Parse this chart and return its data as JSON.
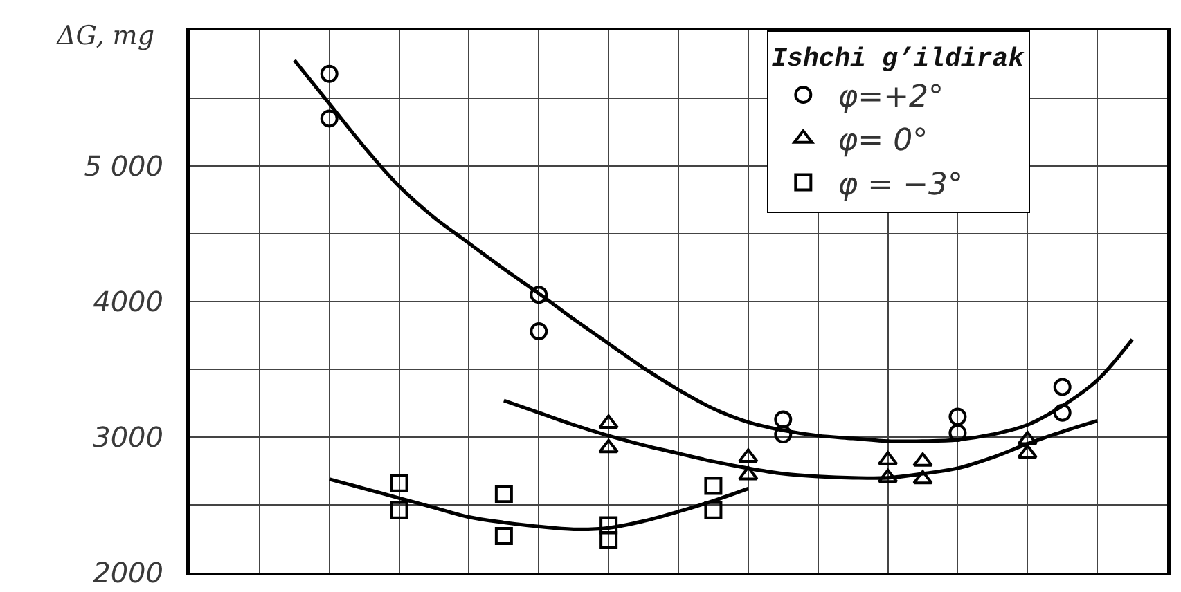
{
  "chart_data": {
    "type": "scatter",
    "ylabel": "ΔG, mg",
    "legend_title": "Ishchi g’ildirak",
    "categories": [
      null,
      null,
      null,
      null,
      null,
      null,
      null,
      null,
      null,
      null,
      null,
      null,
      null,
      null,
      null,
      null,
      null,
      null,
      null,
      null,
      null,
      null,
      null,
      null,
      null,
      null,
      null,
      null,
      null
    ],
    "ylim": [
      2000,
      6000
    ],
    "yticks": [
      2000,
      {
        "value": 2500,
        "label": null
      },
      3000,
      {
        "value": 3500,
        "label": null
      },
      4000,
      {
        "value": 4500,
        "label": null
      },
      {
        "value": 5000,
        "label": "5 000"
      },
      {
        "value": 5500,
        "label": null
      }
    ],
    "tick_labels": "y",
    "grid": true,
    "legend": "top right",
    "line_style": "solid",
    "series": [
      {
        "name": "φ=+2°",
        "color": "#000000",
        "marker": "circle",
        "values": [
          null,
          null,
          null,
          null,
          5680,
          null,
          null,
          null,
          null,
          null,
          4050,
          null,
          null,
          null,
          null,
          null,
          null,
          3130,
          null,
          null,
          null,
          null,
          3150,
          null,
          null,
          3370,
          null,
          null,
          null
        ]
      },
      {
        "color": "#000000",
        "marker": "circle",
        "values": [
          null,
          null,
          null,
          null,
          5350,
          null,
          null,
          null,
          null,
          null,
          3780,
          null,
          null,
          null,
          null,
          null,
          null,
          3020,
          null,
          null,
          null,
          null,
          3030,
          null,
          null,
          3180,
          null,
          null,
          null
        ]
      },
      {
        "name": "φ= 0°",
        "color": "#000000",
        "marker": "triangle",
        "values": [
          null,
          null,
          null,
          null,
          null,
          null,
          null,
          null,
          null,
          null,
          null,
          null,
          3100,
          null,
          null,
          null,
          2850,
          null,
          null,
          null,
          2830,
          2820,
          null,
          null,
          2980,
          null,
          null,
          null,
          null
        ]
      },
      {
        "color": "#000000",
        "marker": "triangle",
        "values": [
          null,
          null,
          null,
          null,
          null,
          null,
          null,
          null,
          null,
          null,
          null,
          null,
          2920,
          null,
          null,
          null,
          2720,
          null,
          null,
          null,
          2700,
          2690,
          null,
          null,
          2880,
          null,
          null,
          null,
          null
        ]
      },
      {
        "name": "φ = −3°",
        "color": "#000000",
        "marker": "square",
        "values": [
          null,
          null,
          null,
          null,
          null,
          null,
          2660,
          null,
          null,
          2580,
          null,
          null,
          2350,
          null,
          null,
          2640,
          null,
          null,
          null,
          null,
          null,
          null,
          null,
          null,
          null,
          null,
          null,
          null,
          null
        ]
      },
      {
        "color": "#000000",
        "marker": "square",
        "values": [
          null,
          null,
          null,
          null,
          null,
          null,
          2460,
          null,
          null,
          2270,
          null,
          null,
          2240,
          null,
          null,
          2460,
          null,
          null,
          null,
          null,
          null,
          null,
          null,
          null,
          null,
          null,
          null,
          null,
          null
        ]
      },
      {
        "type": "line",
        "color": "#000000",
        "values": [
          null,
          null,
          null,
          5780,
          5460,
          5140,
          4850,
          4620,
          4430,
          4240,
          4060,
          3870,
          3690,
          3510,
          3350,
          3210,
          3110,
          3050,
          3010,
          2990,
          2970,
          2970,
          2980,
          3020,
          3090,
          3230,
          3420,
          3720,
          null
        ]
      },
      {
        "type": "line",
        "color": "#000000",
        "values": [
          null,
          null,
          null,
          null,
          null,
          null,
          null,
          null,
          null,
          3270,
          3180,
          3090,
          3010,
          2940,
          2880,
          2820,
          2770,
          2730,
          2710,
          2700,
          2700,
          2730,
          2770,
          2850,
          2950,
          3040,
          3120,
          null,
          null
        ]
      },
      {
        "type": "line",
        "color": "#000000",
        "values": [
          null,
          null,
          null,
          null,
          2690,
          2620,
          2550,
          2480,
          2410,
          2370,
          2340,
          2320,
          2330,
          2380,
          2450,
          2530,
          2620,
          null,
          null,
          null,
          null,
          null,
          null,
          null,
          null,
          null,
          null,
          null,
          null
        ]
      }
    ]
  }
}
